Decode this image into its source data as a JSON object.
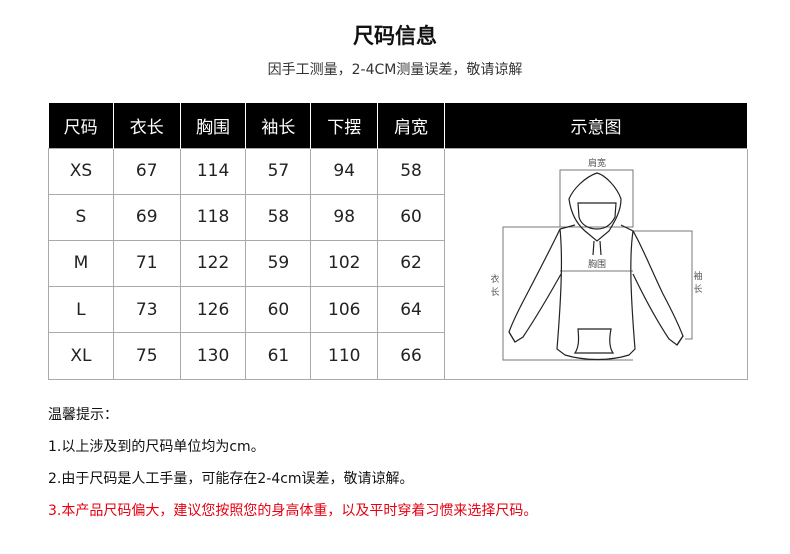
{
  "title": "尺码信息",
  "subtitle": "因手工测量，2-4CM测量误差，敬请谅解",
  "table": {
    "headers": [
      "尺码",
      "衣长",
      "胸围",
      "袖长",
      "下摆",
      "肩宽",
      "示意图"
    ],
    "rows": [
      [
        "XS",
        "67",
        "114",
        "57",
        "94",
        "58"
      ],
      [
        "S",
        "69",
        "118",
        "58",
        "98",
        "60"
      ],
      [
        "M",
        "71",
        "122",
        "59",
        "102",
        "62"
      ],
      [
        "L",
        "73",
        "126",
        "60",
        "106",
        "64"
      ],
      [
        "XL",
        "75",
        "130",
        "61",
        "110",
        "66"
      ]
    ]
  },
  "diagram": {
    "shoulder": "肩宽",
    "chest": "胸围",
    "length_1": "衣",
    "length_2": "长",
    "sleeve_1": "袖",
    "sleeve_2": "长"
  },
  "notes": {
    "heading": "温馨提示：",
    "items": [
      "1.以上涉及到的尺码单位均为cm。",
      "2.由于尺码是人工手量，可能存在2-4cm误差，敬请谅解。",
      "3.本产品尺码偏大，建议您按照您的身高体重，以及平时穿着习惯来选择尺码。"
    ]
  },
  "colors": {
    "header_bg": "#000000",
    "warning": "#e60012"
  }
}
